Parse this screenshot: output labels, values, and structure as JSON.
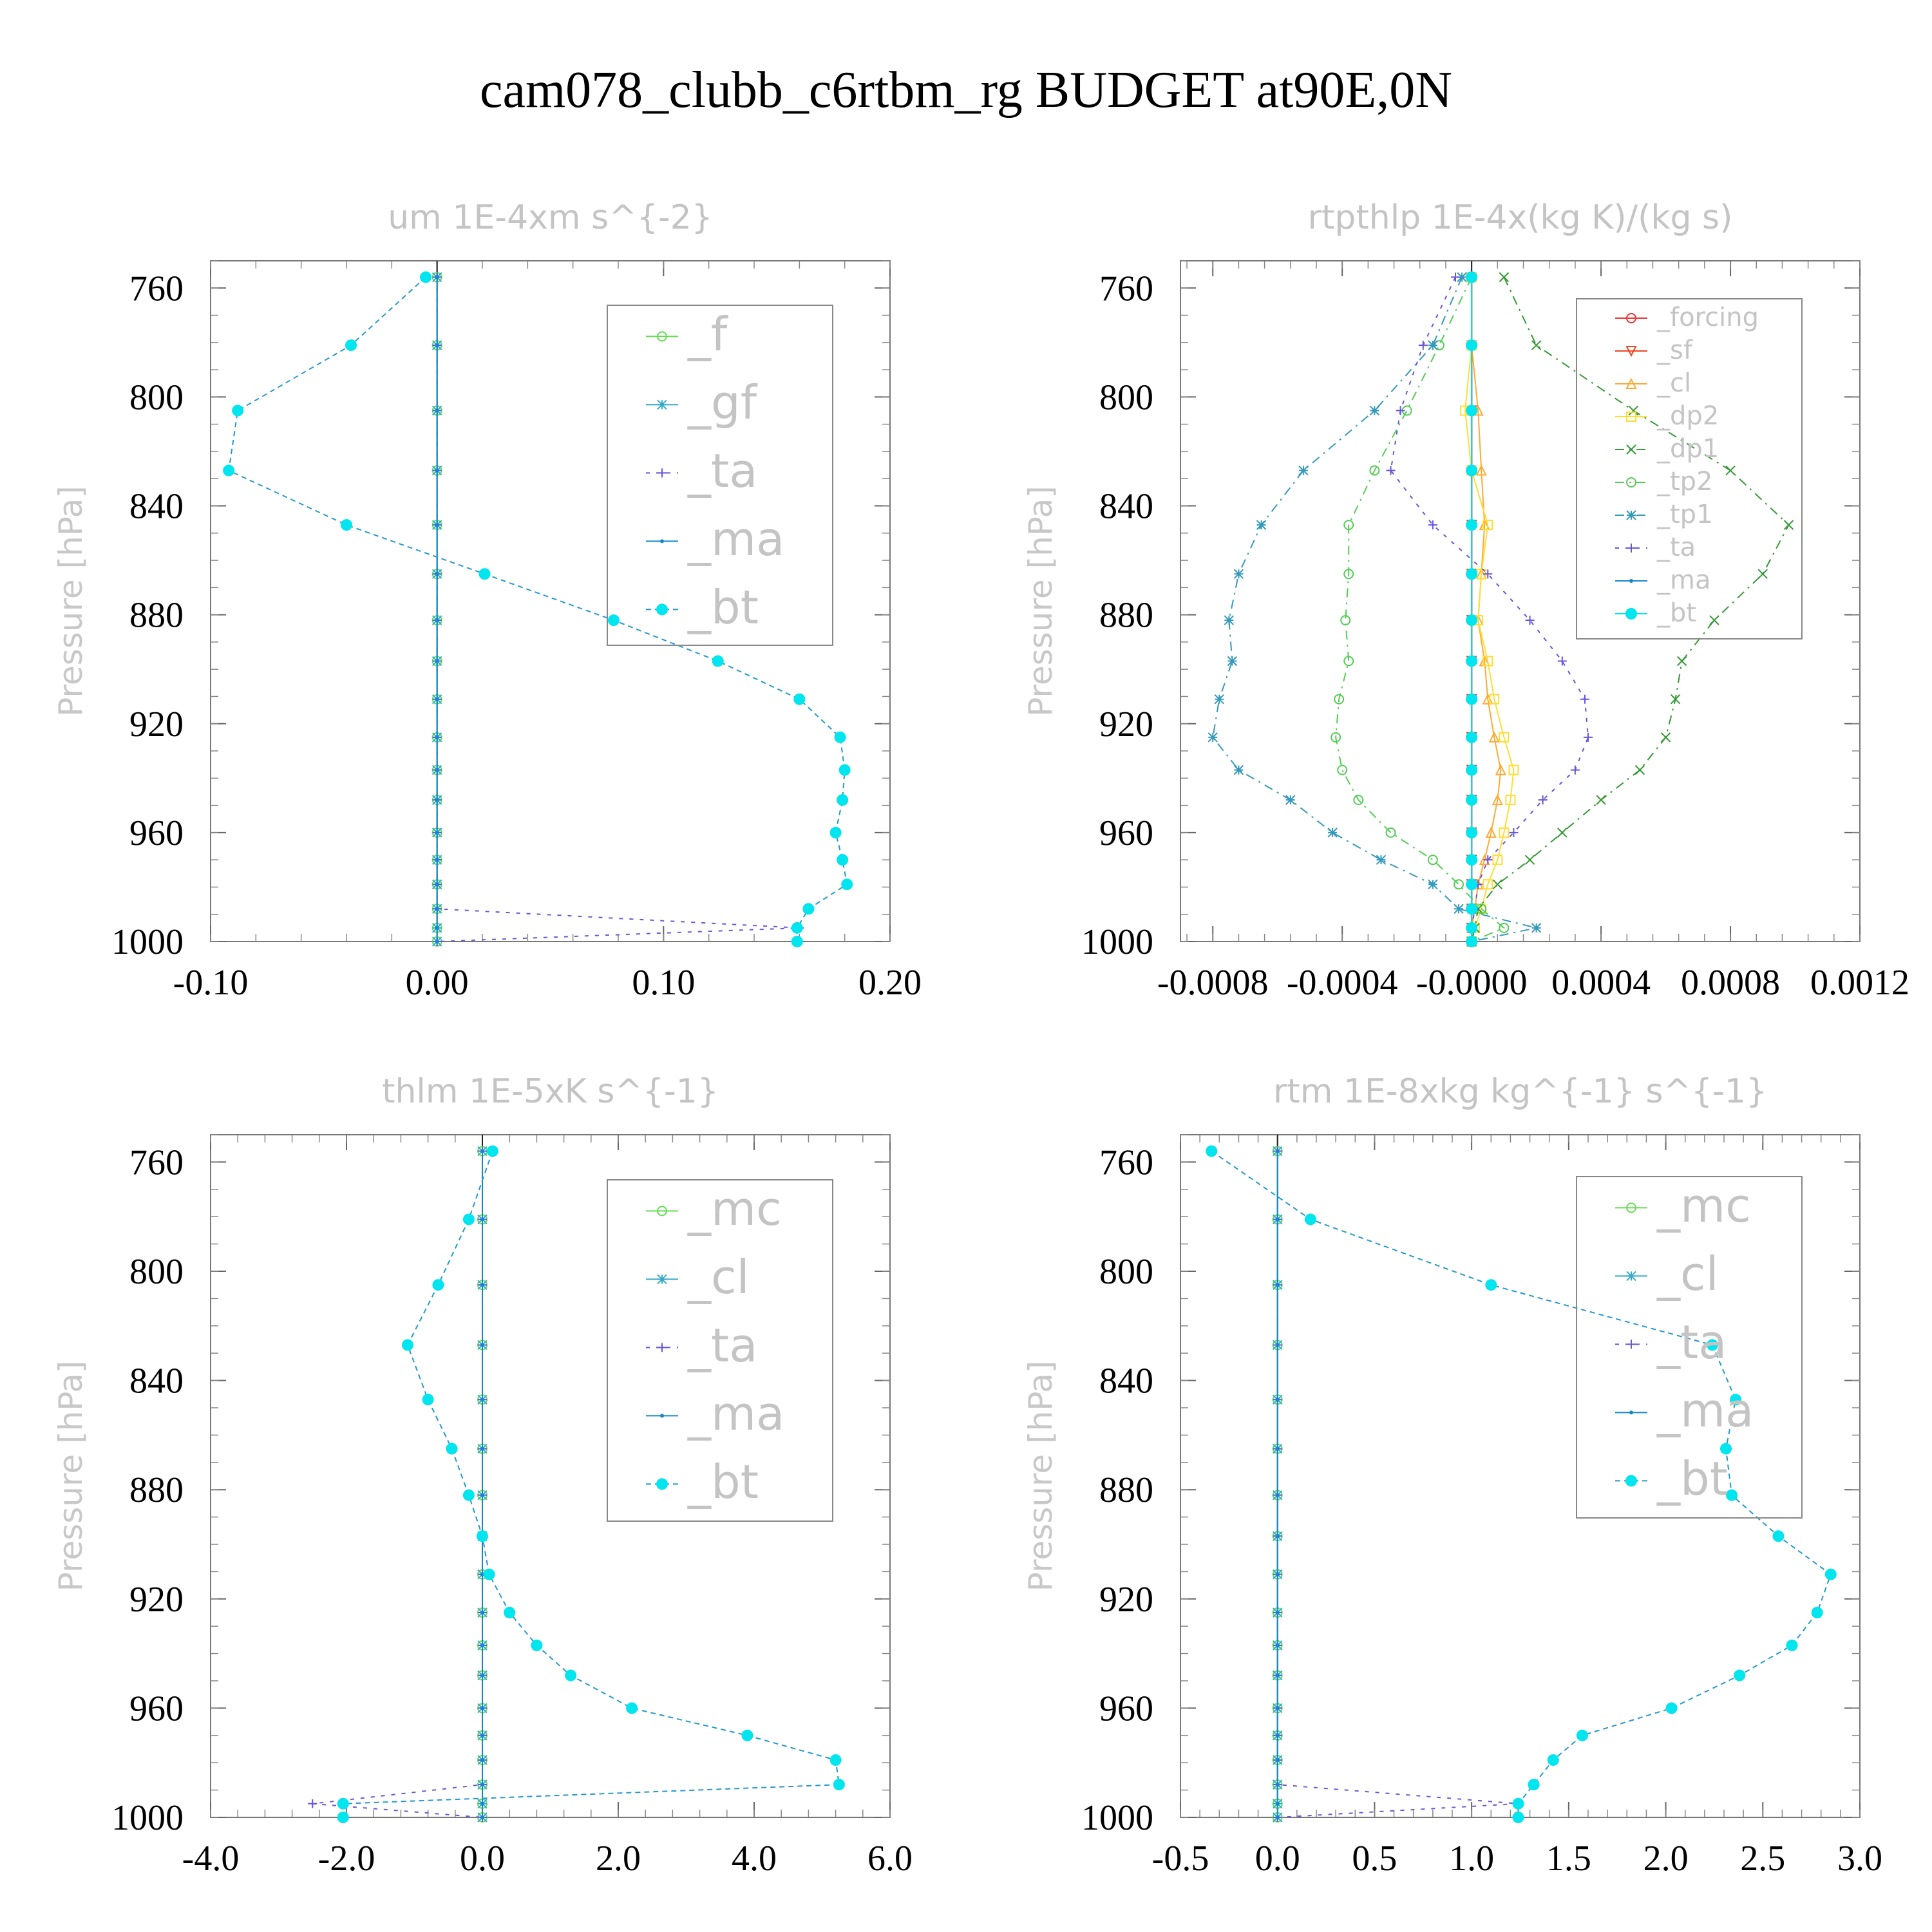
{
  "title": "cam078_clubb_c6rtbm_rg  BUDGET at90E,0N",
  "chart_data": [
    {
      "type": "line",
      "title": "um   1E-4xm s^{-2}",
      "ylabel": "Pressure [hPa]",
      "xlim": [
        -0.1,
        0.2
      ],
      "xticks": [
        "-0.10",
        "0.00",
        "0.10",
        "0.20"
      ],
      "ylim": [
        750,
        1000
      ],
      "yticks": [
        "760",
        "800",
        "840",
        "880",
        "920",
        "960",
        "1000"
      ],
      "legend_position": "top-right",
      "legend_font": 72,
      "levels": [
        756,
        781,
        805,
        827,
        847,
        865,
        882,
        897,
        911,
        925,
        937,
        948,
        960,
        970,
        979,
        988,
        995,
        1000
      ],
      "series": [
        {
          "name": "_f",
          "color": "#66dd55",
          "marker": "circle",
          "dash": "",
          "values": [
            0,
            0,
            0,
            0,
            0,
            0,
            0,
            0,
            0,
            0,
            0,
            0,
            0,
            0,
            0,
            0,
            0,
            0
          ]
        },
        {
          "name": "_gf",
          "color": "#33aacc",
          "marker": "star",
          "dash": "",
          "values": [
            0,
            0,
            0,
            0,
            0,
            0,
            0,
            0,
            0,
            0,
            0,
            0,
            0,
            0,
            0,
            0,
            0,
            0
          ]
        },
        {
          "name": "_ta",
          "color": "#6655dd",
          "marker": "plus",
          "dash": "6,10",
          "values": [
            0,
            0,
            0,
            0,
            0,
            0,
            0,
            0,
            0,
            0,
            0,
            0,
            0,
            0,
            0,
            0,
            0.16,
            0
          ]
        },
        {
          "name": "_ma",
          "color": "#1188cc",
          "marker": "dot",
          "dash": "",
          "values": [
            0,
            0,
            0,
            0,
            0,
            0,
            0,
            0,
            0,
            0,
            0,
            0,
            0,
            0,
            0,
            0,
            0,
            0
          ]
        },
        {
          "name": "_bt",
          "color": "#00e5ee",
          "marker": "bigdot",
          "dash": "8,6",
          "linecolor": "#2299cc",
          "values": [
            -0.005,
            -0.038,
            -0.088,
            -0.092,
            -0.04,
            0.021,
            0.078,
            0.124,
            0.16,
            0.178,
            0.18,
            0.179,
            0.176,
            0.179,
            0.181,
            0.164,
            0.159,
            0.159
          ]
        }
      ]
    },
    {
      "type": "line",
      "title": "rtpthlp   1E-4x(kg K)/(kg s)",
      "ylabel": "Pressure [hPa]",
      "xlim": [
        -0.0009,
        0.0012
      ],
      "xticks": [
        "-0.0008",
        "-0.0004",
        "-0.0000",
        "0.0004",
        "0.0008",
        "0.0012"
      ],
      "xtick_values": [
        -0.0008,
        -0.0004,
        0.0,
        0.0004,
        0.0008,
        0.0012
      ],
      "ylim": [
        750,
        1000
      ],
      "yticks": [
        "760",
        "800",
        "840",
        "880",
        "920",
        "960",
        "1000"
      ],
      "legend_position": "top-right",
      "legend_font": 40,
      "levels": [
        756,
        781,
        805,
        827,
        847,
        865,
        882,
        897,
        911,
        925,
        937,
        948,
        960,
        970,
        979,
        988,
        995,
        1000
      ],
      "series": [
        {
          "name": "_forcing",
          "color": "#ee3333",
          "marker": "circle",
          "dash": "",
          "values": [
            0,
            0,
            0,
            0,
            0,
            0,
            0,
            0,
            0,
            0,
            0,
            0,
            0,
            0,
            0,
            0,
            0,
            0
          ]
        },
        {
          "name": "_sf",
          "color": "#ee4422",
          "marker": "tridown",
          "dash": "",
          "values": [
            0,
            0,
            0,
            0,
            0,
            0,
            0,
            0,
            0,
            0,
            0,
            0,
            0,
            0,
            0,
            0,
            0,
            0
          ]
        },
        {
          "name": "_cl",
          "color": "#ffaa33",
          "marker": "triup",
          "dash": "",
          "values": [
            0,
            0,
            2e-05,
            3e-05,
            4e-05,
            3e-05,
            2e-05,
            4e-05,
            5e-05,
            7e-05,
            9e-05,
            8e-05,
            6e-05,
            4e-05,
            2e-05,
            1e-05,
            0,
            0
          ]
        },
        {
          "name": "_dp2",
          "color": "#ffdd33",
          "marker": "square",
          "dash": "",
          "values": [
            0,
            0,
            -2e-05,
            0,
            5e-05,
            3e-05,
            2e-05,
            5e-05,
            7e-05,
            0.0001,
            0.00013,
            0.00012,
            0.0001,
            8e-05,
            5e-05,
            3e-05,
            1e-05,
            0
          ]
        },
        {
          "name": "_dp1",
          "color": "#339933",
          "marker": "x",
          "dash": "14,8,3,8",
          "values": [
            0.0001,
            0.0002,
            0.0005,
            0.0008,
            0.00098,
            0.0009,
            0.00075,
            0.00065,
            0.00063,
            0.0006,
            0.00052,
            0.0004,
            0.00028,
            0.00018,
            8e-05,
            2e-05,
            1e-05,
            0
          ]
        },
        {
          "name": "_tp2",
          "color": "#55cc55",
          "marker": "circle",
          "dash": "14,8,3,8",
          "values": [
            0,
            -0.0001,
            -0.0002,
            -0.0003,
            -0.00038,
            -0.00038,
            -0.00039,
            -0.00038,
            -0.00041,
            -0.00042,
            -0.0004,
            -0.00035,
            -0.00025,
            -0.00012,
            -4e-05,
            3e-05,
            0.0001,
            0
          ]
        },
        {
          "name": "_tp1",
          "color": "#3399bb",
          "marker": "star",
          "dash": "14,8,3,8",
          "values": [
            -3e-05,
            -0.00012,
            -0.0003,
            -0.00052,
            -0.00065,
            -0.00072,
            -0.00075,
            -0.00074,
            -0.00078,
            -0.0008,
            -0.00072,
            -0.00056,
            -0.00043,
            -0.00028,
            -0.00012,
            -4e-05,
            0.0002,
            0
          ]
        },
        {
          "name": "_ta",
          "color": "#6655dd",
          "marker": "plus",
          "dash": "6,10",
          "values": [
            -5e-05,
            -0.00015,
            -0.00022,
            -0.00025,
            -0.00012,
            5e-05,
            0.00018,
            0.00028,
            0.00035,
            0.00036,
            0.00032,
            0.00022,
            0.00013,
            5e-05,
            2e-05,
            1e-05,
            0,
            0
          ]
        },
        {
          "name": "_ma",
          "color": "#1188cc",
          "marker": "dot",
          "dash": "",
          "values": [
            0,
            0,
            0,
            0,
            0,
            0,
            0,
            0,
            0,
            0,
            0,
            0,
            0,
            0,
            0,
            0,
            0,
            0
          ]
        },
        {
          "name": "_bt",
          "color": "#00e5ee",
          "marker": "bigdot",
          "dash": "",
          "values": [
            0,
            0,
            0,
            0,
            0,
            0,
            0,
            0,
            0,
            0,
            0,
            0,
            0,
            0,
            0,
            0,
            0,
            0
          ]
        }
      ]
    },
    {
      "type": "line",
      "title": "thlm   1E-5xK s^{-1}",
      "ylabel": "Pressure [hPa]",
      "xlim": [
        -4.0,
        6.0
      ],
      "xticks": [
        "-4.0",
        "-2.0",
        "0.0",
        "2.0",
        "4.0",
        "6.0"
      ],
      "ylim": [
        750,
        1000
      ],
      "yticks": [
        "760",
        "800",
        "840",
        "880",
        "920",
        "960",
        "1000"
      ],
      "legend_position": "top-right",
      "legend_font": 72,
      "levels": [
        756,
        781,
        805,
        827,
        847,
        865,
        882,
        897,
        911,
        925,
        937,
        948,
        960,
        970,
        979,
        988,
        995,
        1000
      ],
      "series": [
        {
          "name": "_mc",
          "color": "#66dd55",
          "marker": "circle",
          "dash": "",
          "values": [
            0,
            0,
            0,
            0,
            0,
            0,
            0,
            0,
            0,
            0,
            0,
            0,
            0,
            0,
            0,
            0,
            0,
            0
          ]
        },
        {
          "name": "_cl",
          "color": "#33aacc",
          "marker": "star",
          "dash": "",
          "values": [
            0,
            0,
            0,
            0,
            0,
            0,
            0,
            0,
            0,
            0,
            0,
            0,
            0,
            0,
            0,
            0,
            0,
            0
          ]
        },
        {
          "name": "_ta",
          "color": "#6655dd",
          "marker": "plus",
          "dash": "6,10",
          "values": [
            0,
            0,
            0,
            0,
            0,
            0,
            0,
            0,
            0,
            0,
            0,
            0,
            0,
            0,
            0,
            0,
            -2.5,
            0
          ]
        },
        {
          "name": "_ma",
          "color": "#1188cc",
          "marker": "dot",
          "dash": "",
          "values": [
            0,
            0,
            0,
            0,
            0,
            0,
            0,
            0,
            0,
            0,
            0,
            0,
            0,
            0,
            0,
            0,
            0,
            0
          ]
        },
        {
          "name": "_bt",
          "color": "#00e5ee",
          "marker": "bigdot",
          "dash": "8,6",
          "linecolor": "#2299cc",
          "values": [
            0.15,
            -0.2,
            -0.65,
            -1.1,
            -0.8,
            -0.45,
            -0.2,
            0.0,
            0.1,
            0.4,
            0.8,
            1.3,
            2.2,
            3.9,
            5.2,
            5.25,
            -2.05,
            -2.05
          ]
        }
      ]
    },
    {
      "type": "line",
      "title": "rtm   1E-8xkg kg^{-1} s^{-1}",
      "ylabel": "Pressure [hPa]",
      "xlim": [
        -0.5,
        3.0
      ],
      "xticks": [
        "-0.5",
        "0.0",
        "0.5",
        "1.0",
        "1.5",
        "2.0",
        "2.5",
        "3.0"
      ],
      "ylim": [
        750,
        1000
      ],
      "yticks": [
        "760",
        "800",
        "840",
        "880",
        "920",
        "960",
        "1000"
      ],
      "legend_position": "top-right",
      "legend_font": 72,
      "levels": [
        756,
        781,
        805,
        827,
        847,
        865,
        882,
        897,
        911,
        925,
        937,
        948,
        960,
        970,
        979,
        988,
        995,
        1000
      ],
      "series": [
        {
          "name": "_mc",
          "color": "#66dd55",
          "marker": "circle",
          "dash": "",
          "values": [
            0,
            0,
            0,
            0,
            0,
            0,
            0,
            0,
            0,
            0,
            0,
            0,
            0,
            0,
            0,
            0,
            0,
            0
          ]
        },
        {
          "name": "_cl",
          "color": "#33aacc",
          "marker": "star",
          "dash": "",
          "values": [
            0,
            0,
            0,
            0,
            0,
            0,
            0,
            0,
            0,
            0,
            0,
            0,
            0,
            0,
            0,
            0,
            0,
            0
          ]
        },
        {
          "name": "_ta",
          "color": "#6655dd",
          "marker": "plus",
          "dash": "6,10",
          "values": [
            0,
            0,
            0,
            0,
            0,
            0,
            0,
            0,
            0,
            0,
            0,
            0,
            0,
            0,
            0,
            0,
            1.24,
            0
          ]
        },
        {
          "name": "_ma",
          "color": "#1188cc",
          "marker": "dot",
          "dash": "",
          "values": [
            0,
            0,
            0,
            0,
            0,
            0,
            0,
            0,
            0,
            0,
            0,
            0,
            0,
            0,
            0,
            0,
            0,
            0
          ]
        },
        {
          "name": "_bt",
          "color": "#00e5ee",
          "marker": "bigdot",
          "dash": "8,6",
          "linecolor": "#2299cc",
          "values": [
            -0.34,
            0.17,
            1.1,
            2.24,
            2.36,
            2.31,
            2.34,
            2.58,
            2.85,
            2.78,
            2.65,
            2.38,
            2.03,
            1.57,
            1.42,
            1.32,
            1.24,
            1.24
          ]
        }
      ]
    }
  ]
}
